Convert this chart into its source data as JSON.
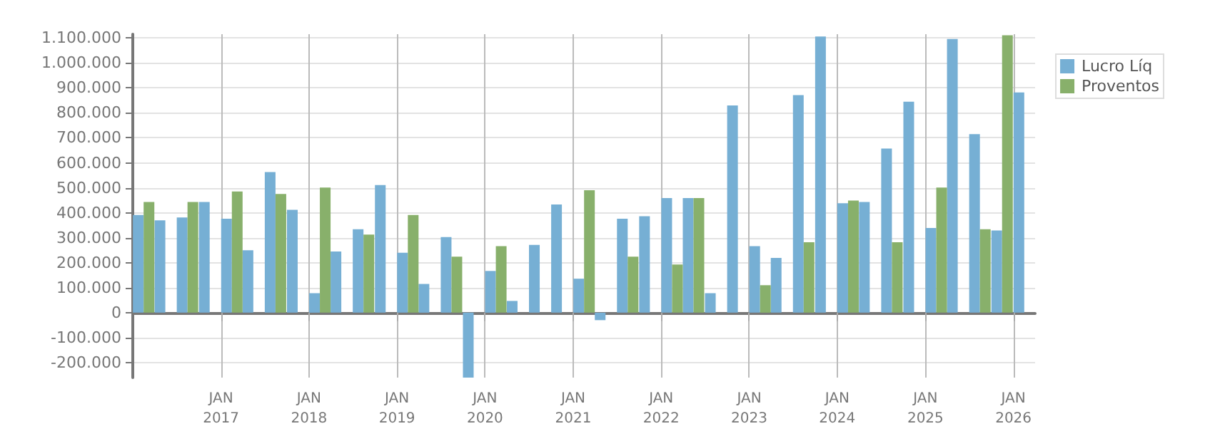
{
  "chart_data": {
    "type": "bar",
    "x": [
      "2016-02-15",
      "2016-05-15",
      "2016-08-15",
      "2016-11-15",
      "2017-02-15",
      "2017-05-15",
      "2017-08-15",
      "2017-11-15",
      "2018-02-15",
      "2018-05-15",
      "2018-08-15",
      "2018-11-15",
      "2019-02-15",
      "2019-05-15",
      "2019-08-15",
      "2019-11-15",
      "2020-02-15",
      "2020-05-15",
      "2020-08-15",
      "2020-11-15",
      "2021-02-15",
      "2021-05-15",
      "2021-08-15",
      "2021-11-15",
      "2022-02-15",
      "2022-05-15",
      "2022-08-15",
      "2022-11-15",
      "2023-02-15",
      "2023-05-15",
      "2023-08-15",
      "2023-11-15",
      "2024-02-15",
      "2024-05-15",
      "2024-08-15",
      "2024-11-15",
      "2025-02-15",
      "2025-05-15",
      "2025-08-15",
      "2025-11-15",
      "2026-02-15"
    ],
    "series": [
      {
        "name": "Lucro Líq",
        "color": "#76afd4",
        "values": [
          391000,
          370000,
          381000,
          443000,
          376000,
          250000,
          563000,
          412000,
          78000,
          245000,
          334000,
          511000,
          240000,
          115000,
          303000,
          -260000,
          167000,
          47000,
          271000,
          433000,
          136000,
          -30000,
          376000,
          386000,
          459000,
          459000,
          78000,
          830000,
          266000,
          219000,
          871000,
          1106000,
          438000,
          443000,
          657000,
          845000,
          339000,
          1096000,
          715000,
          329000,
          882000
        ]
      },
      {
        "name": "Proventos",
        "color": "#88b06b",
        "values": [
          443000,
          0,
          443000,
          0,
          485000,
          0,
          475000,
          0,
          501000,
          0,
          313000,
          0,
          391000,
          0,
          224000,
          0,
          266000,
          0,
          0,
          0,
          490000,
          0,
          224000,
          0,
          193000,
          459000,
          0,
          0,
          110000,
          0,
          282000,
          0,
          449000,
          0,
          282000,
          0,
          501000,
          0,
          334000,
          1111000,
          0
        ]
      }
    ],
    "xlim": [
      "2016-01-01",
      "2026-04-01"
    ],
    "xticks": [
      {
        "value": "2017-01-01",
        "label": "JAN\n2017"
      },
      {
        "value": "2018-01-01",
        "label": "JAN\n2018"
      },
      {
        "value": "2019-01-01",
        "label": "JAN\n2019"
      },
      {
        "value": "2020-01-01",
        "label": "JAN\n2020"
      },
      {
        "value": "2021-01-01",
        "label": "JAN\n2021"
      },
      {
        "value": "2022-01-01",
        "label": "JAN\n2022"
      },
      {
        "value": "2023-01-01",
        "label": "JAN\n2023"
      },
      {
        "value": "2024-01-01",
        "label": "JAN\n2024"
      },
      {
        "value": "2025-01-01",
        "label": "JAN\n2025"
      },
      {
        "value": "2026-01-01",
        "label": "JAN\n2026"
      }
    ],
    "ylim": [
      -260000,
      1115000
    ],
    "yticks": [
      {
        "value": -200000,
        "label": "-200.000"
      },
      {
        "value": -100000,
        "label": "-100.000"
      },
      {
        "value": 0,
        "label": "0"
      },
      {
        "value": 100000,
        "label": "100.000"
      },
      {
        "value": 200000,
        "label": "200.000"
      },
      {
        "value": 300000,
        "label": "300.000"
      },
      {
        "value": 400000,
        "label": "400.000"
      },
      {
        "value": 500000,
        "label": "500.000"
      },
      {
        "value": 600000,
        "label": "600.000"
      },
      {
        "value": 700000,
        "label": "700.000"
      },
      {
        "value": 800000,
        "label": "800.000"
      },
      {
        "value": 900000,
        "label": "900.000"
      },
      {
        "value": 1000000,
        "label": "1.000.000"
      },
      {
        "value": 1100000,
        "label": "1.100.000"
      }
    ],
    "grid": true,
    "legend": "top right"
  }
}
